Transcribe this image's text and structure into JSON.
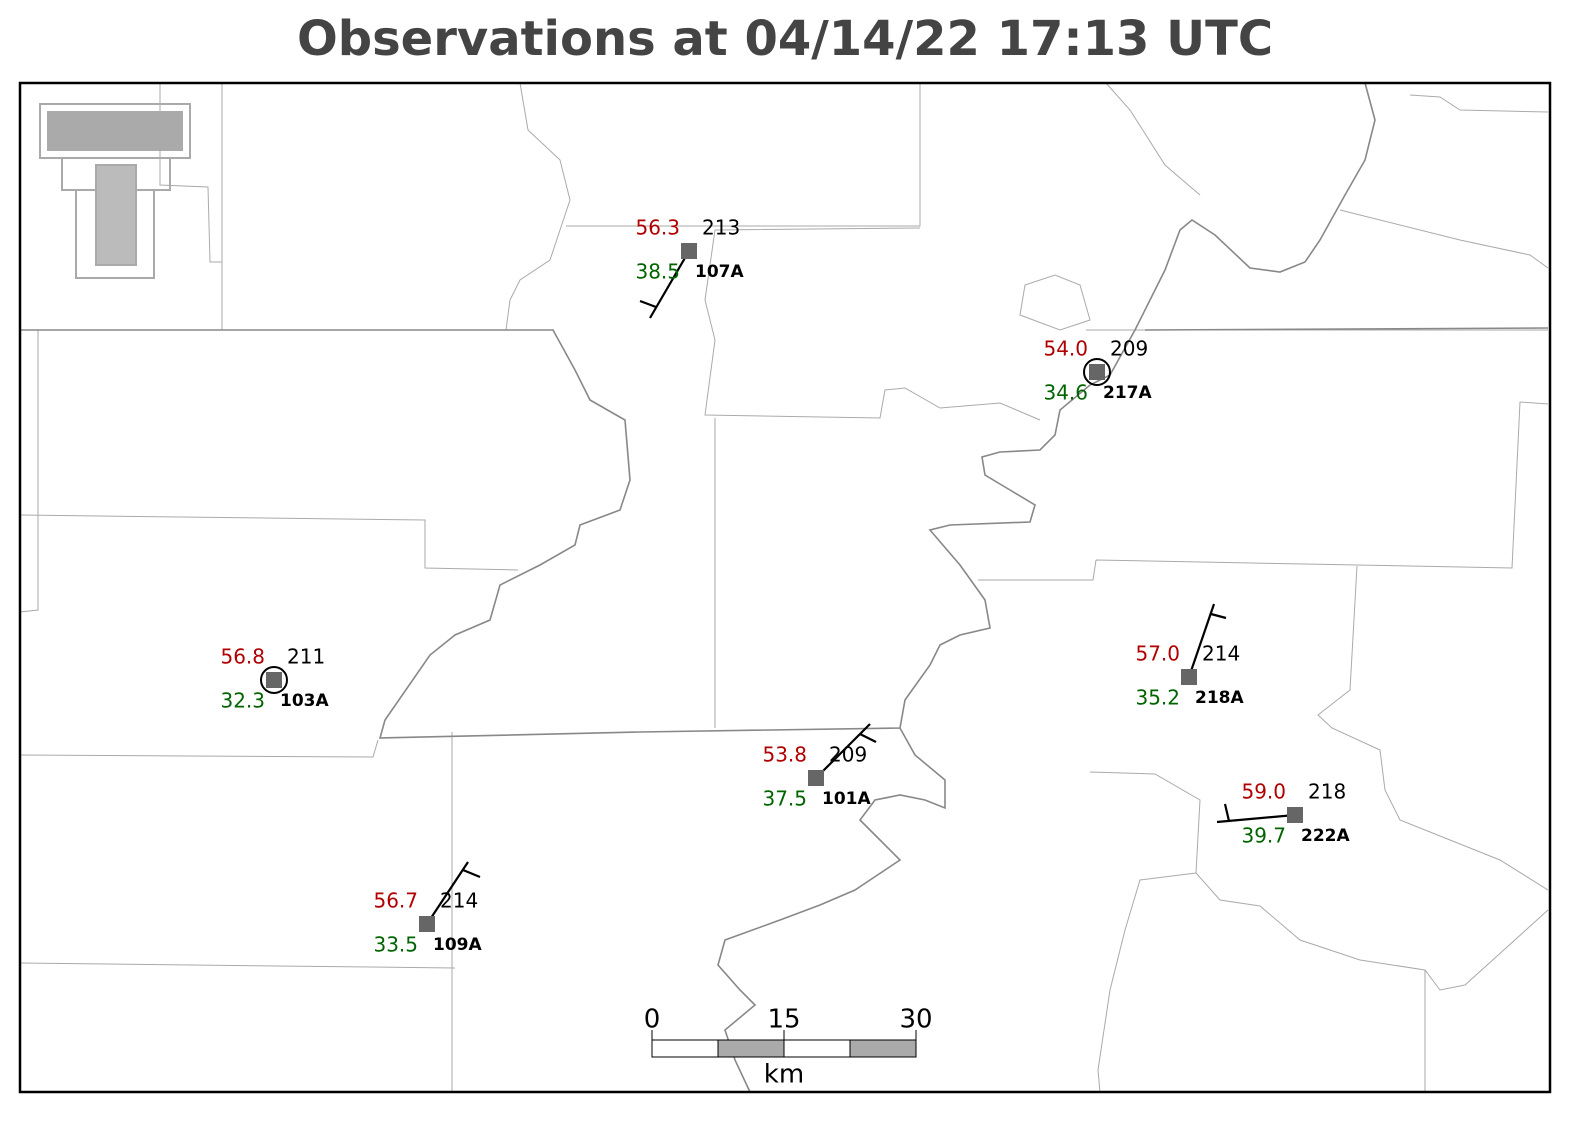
{
  "title": "Observations at 04/14/22 17:13 UTC",
  "stations": [
    {
      "id": "107A",
      "temperature": "56.3",
      "dewpoint": "38.5",
      "pressure": "213"
    },
    {
      "id": "217A",
      "temperature": "54.0",
      "dewpoint": "34.6",
      "pressure": "209"
    },
    {
      "id": "103A",
      "temperature": "56.8",
      "dewpoint": "32.3",
      "pressure": "211"
    },
    {
      "id": "101A",
      "temperature": "53.8",
      "dewpoint": "37.5",
      "pressure": "209"
    },
    {
      "id": "218A",
      "temperature": "57.0",
      "dewpoint": "35.2",
      "pressure": "214"
    },
    {
      "id": "222A",
      "temperature": "59.0",
      "dewpoint": "39.7",
      "pressure": "218"
    },
    {
      "id": "109A",
      "temperature": "56.7",
      "dewpoint": "33.5",
      "pressure": "214"
    }
  ],
  "scale_bar": {
    "ticks": [
      0,
      15,
      30
    ],
    "unit": "km"
  }
}
